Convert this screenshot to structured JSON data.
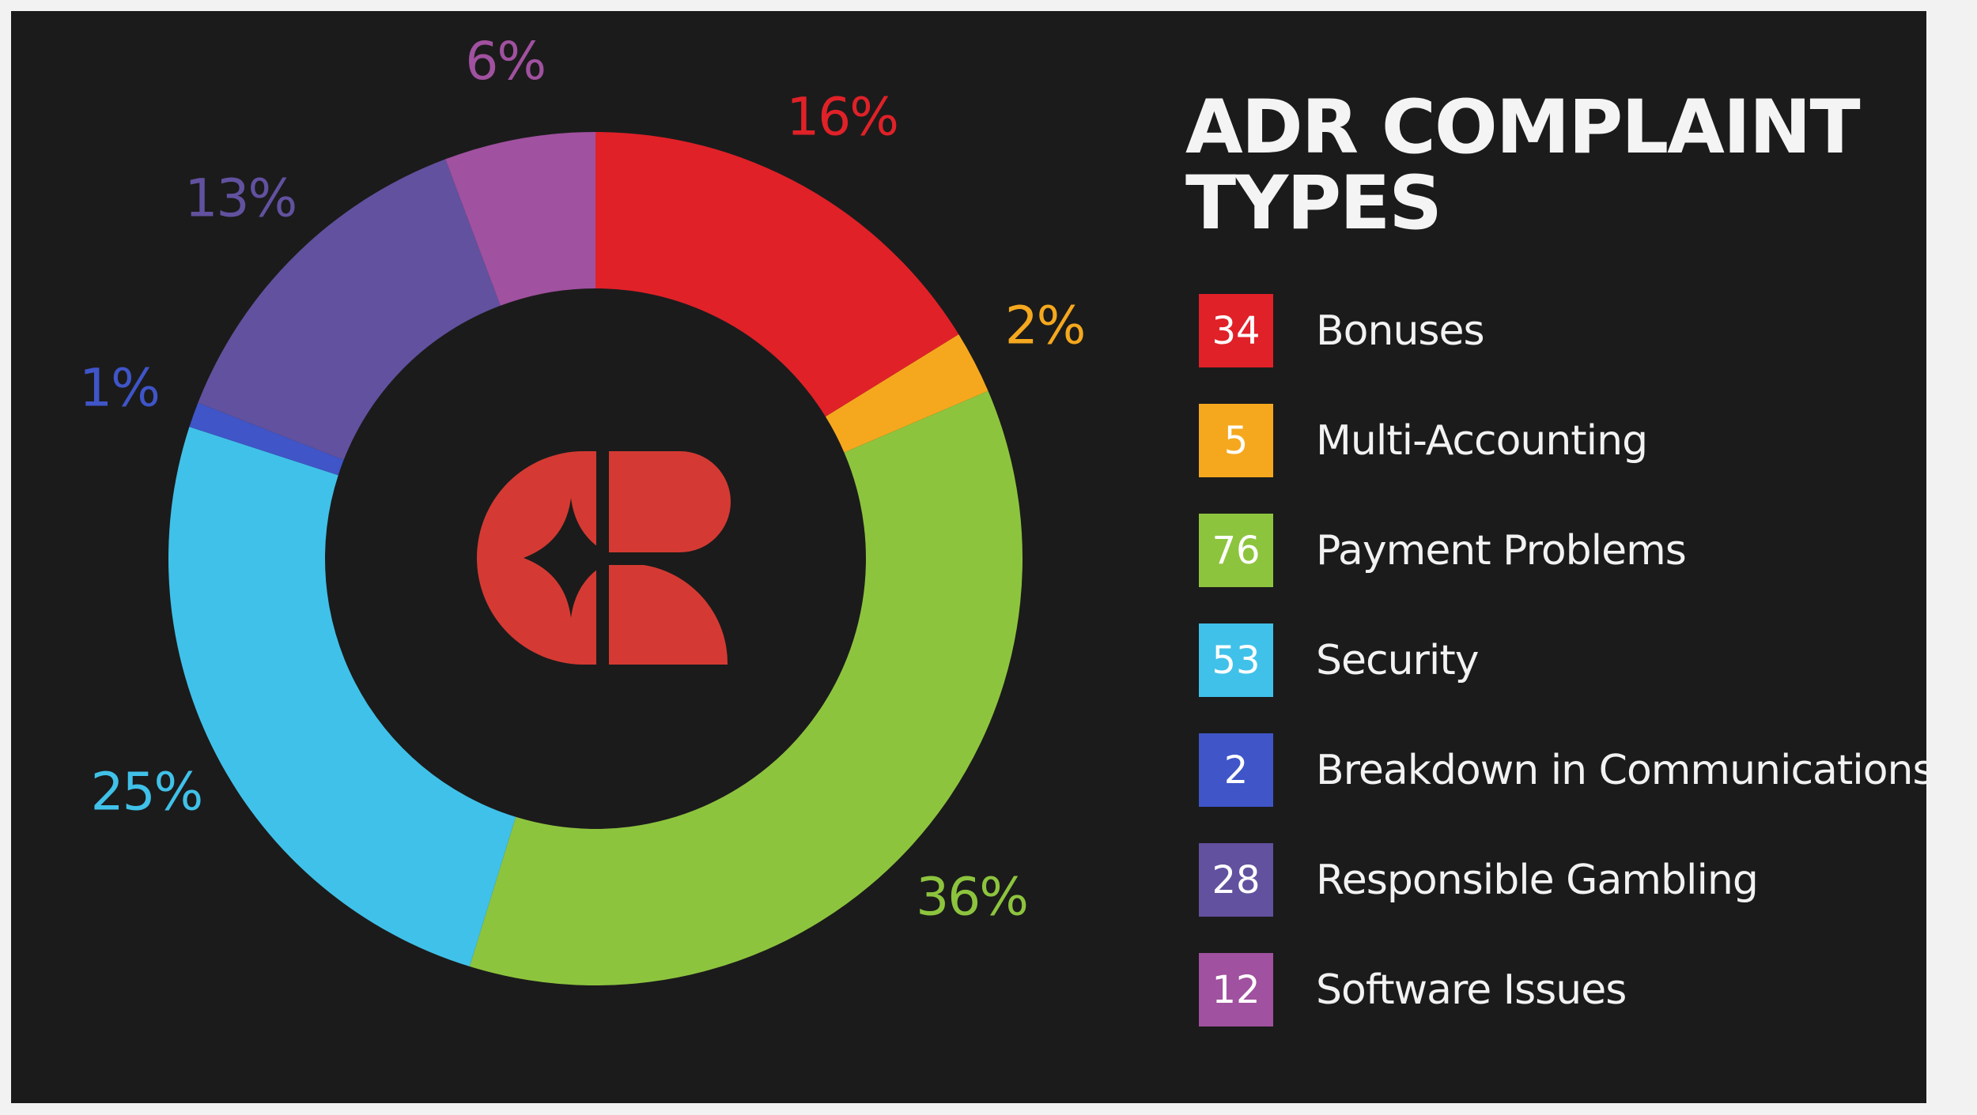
{
  "chart_data": {
    "type": "pie",
    "title": "ADR COMPLAINT TYPES",
    "categories": [
      "Bonuses",
      "Multi-Accounting",
      "Payment Problems",
      "Security",
      "Breakdown in Communications",
      "Responsible Gambling",
      "Software Issues"
    ],
    "values": [
      34,
      5,
      76,
      53,
      2,
      28,
      12
    ],
    "percent_labels": [
      "16%",
      "2%",
      "36%",
      "25%",
      "1%",
      "13%",
      "6%"
    ],
    "colors": [
      "#e02128",
      "#f5a81e",
      "#8dc43e",
      "#40c1e9",
      "#3f55c8",
      "#62519f",
      "#a0519f"
    ],
    "legend_position": "right"
  },
  "logo": {
    "name": "casino-guru-logo-icon",
    "color": "#d43a33"
  },
  "colors": {
    "background": "#1b1b1b",
    "text": "#f4f4f4"
  }
}
